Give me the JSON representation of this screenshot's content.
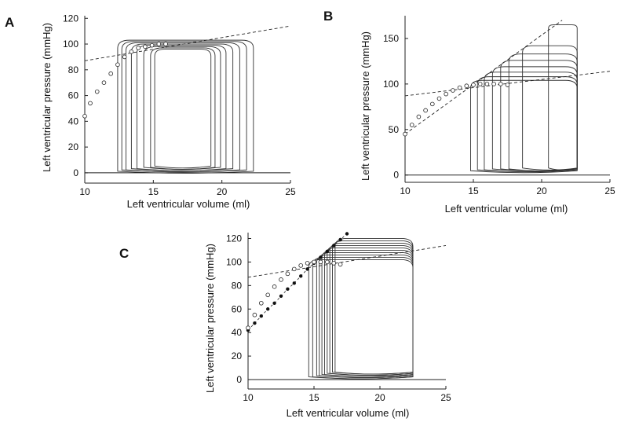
{
  "chart_data": [
    {
      "panel": "A",
      "type": "line",
      "title": "",
      "xlabel": "Left ventricular volume (ml)",
      "ylabel": "Left ventricular pressure (mmHg)",
      "xlim": [
        10,
        25
      ],
      "ylim": [
        -8,
        122
      ],
      "xticks": [
        10,
        15,
        20,
        25
      ],
      "yticks": [
        0,
        20,
        40,
        60,
        80,
        100,
        120
      ],
      "edpvr_line": {
        "x": [
          10,
          25
        ],
        "y": [
          87,
          114
        ]
      },
      "esp_circles": {
        "x": [
          10.0,
          10.4,
          10.9,
          11.4,
          11.9,
          12.4,
          12.9,
          13.4,
          13.9,
          14.4,
          14.9,
          15.4,
          15.9
        ],
        "y": [
          44,
          54,
          63,
          70,
          77,
          84,
          90,
          94,
          97,
          98,
          99,
          100,
          100
        ]
      },
      "loops": [
        {
          "edv": 22.3,
          "esv": 12.4,
          "peak": 103,
          "min": 0
        },
        {
          "edv": 21.8,
          "esv": 12.7,
          "peak": 102,
          "min": 1
        },
        {
          "edv": 21.3,
          "esv": 13.0,
          "peak": 101,
          "min": 1
        },
        {
          "edv": 20.8,
          "esv": 13.4,
          "peak": 100,
          "min": 2
        },
        {
          "edv": 20.3,
          "esv": 13.8,
          "peak": 99,
          "min": 2
        },
        {
          "edv": 19.9,
          "esv": 14.3,
          "peak": 98,
          "min": 3
        },
        {
          "edv": 19.5,
          "esv": 14.8,
          "peak": 97,
          "min": 3
        },
        {
          "edv": 19.2,
          "esv": 15.1,
          "peak": 96,
          "min": 4
        }
      ]
    },
    {
      "panel": "B",
      "type": "line",
      "title": "",
      "xlabel": "Left ventricular volume (ml)",
      "ylabel": "Left ventricular pressure (mmHg)",
      "xlim": [
        10,
        25
      ],
      "ylim": [
        -8,
        175
      ],
      "xticks": [
        10,
        15,
        20,
        25
      ],
      "yticks": [
        0,
        50,
        100,
        150
      ],
      "edpvr_line": {
        "x": [
          10,
          25
        ],
        "y": [
          87,
          114
        ]
      },
      "espvr_line": {
        "x": [
          10,
          21.5
        ],
        "y": [
          45,
          170
        ]
      },
      "esp_circles": {
        "x": [
          10.0,
          10.5,
          11.0,
          11.5,
          12.0,
          12.5,
          13.0,
          13.5,
          14.0,
          14.5,
          15.0,
          15.5,
          16.0,
          16.5,
          17.0,
          17.5
        ],
        "y": [
          45,
          55,
          64,
          71,
          78,
          84,
          89,
          93,
          96,
          98,
          99,
          100,
          100,
          100,
          100,
          99
        ]
      },
      "loops": [
        {
          "edv": 22.6,
          "esv": 14.8,
          "peak": 104,
          "min": 3
        },
        {
          "edv": 22.6,
          "esv": 15.3,
          "peak": 108,
          "min": 4
        },
        {
          "edv": 22.6,
          "esv": 15.8,
          "peak": 113,
          "min": 4
        },
        {
          "edv": 22.6,
          "esv": 16.4,
          "peak": 119,
          "min": 5
        },
        {
          "edv": 22.6,
          "esv": 17.0,
          "peak": 126,
          "min": 5
        },
        {
          "edv": 22.6,
          "esv": 17.6,
          "peak": 133,
          "min": 5
        },
        {
          "edv": 22.6,
          "esv": 18.6,
          "peak": 142,
          "min": 6
        },
        {
          "edv": 22.6,
          "esv": 20.5,
          "peak": 165,
          "min": 6
        }
      ]
    },
    {
      "panel": "C",
      "type": "line",
      "title": "",
      "xlabel": "Left ventricular volume (ml)",
      "ylabel": "Left ventricular pressure (mmHg)",
      "xlim": [
        10,
        25
      ],
      "ylim": [
        -8,
        125
      ],
      "xticks": [
        10,
        15,
        20,
        25
      ],
      "yticks": [
        0,
        20,
        40,
        60,
        80,
        100,
        120
      ],
      "edpvr_line": {
        "x": [
          10,
          25
        ],
        "y": [
          87,
          114
        ]
      },
      "espvr_dots": {
        "x": [
          10.0,
          10.5,
          11.0,
          11.5,
          12.0,
          12.5,
          13.0,
          13.5,
          14.0,
          14.5,
          15.0,
          15.5,
          16.0,
          16.5,
          17.0,
          17.5
        ],
        "y": [
          42,
          48,
          54,
          60,
          65,
          71,
          77,
          82,
          88,
          94,
          99,
          104,
          109,
          114,
          119,
          124
        ]
      },
      "esp_circles": {
        "x": [
          10.0,
          10.5,
          11.0,
          11.5,
          12.0,
          12.5,
          13.0,
          13.5,
          14.0,
          14.5,
          15.0,
          15.5,
          16.0,
          16.5,
          17.0
        ],
        "y": [
          44,
          55,
          65,
          72,
          79,
          85,
          90,
          94,
          97,
          99,
          100,
          100,
          100,
          99,
          98
        ]
      },
      "loops": [
        {
          "edv": 22.5,
          "esv": 14.6,
          "peak": 102,
          "min": 1
        },
        {
          "edv": 22.5,
          "esv": 14.9,
          "peak": 104,
          "min": 1
        },
        {
          "edv": 22.5,
          "esv": 15.2,
          "peak": 106,
          "min": 2
        },
        {
          "edv": 22.5,
          "esv": 15.4,
          "peak": 108,
          "min": 2
        },
        {
          "edv": 22.5,
          "esv": 15.6,
          "peak": 110,
          "min": 3
        },
        {
          "edv": 22.5,
          "esv": 15.8,
          "peak": 112,
          "min": 3
        },
        {
          "edv": 22.5,
          "esv": 16.0,
          "peak": 114,
          "min": 4
        },
        {
          "edv": 22.5,
          "esv": 16.2,
          "peak": 116,
          "min": 4
        },
        {
          "edv": 22.5,
          "esv": 16.4,
          "peak": 118,
          "min": 5
        },
        {
          "edv": 22.5,
          "esv": 16.6,
          "peak": 120,
          "min": 5
        }
      ]
    }
  ]
}
